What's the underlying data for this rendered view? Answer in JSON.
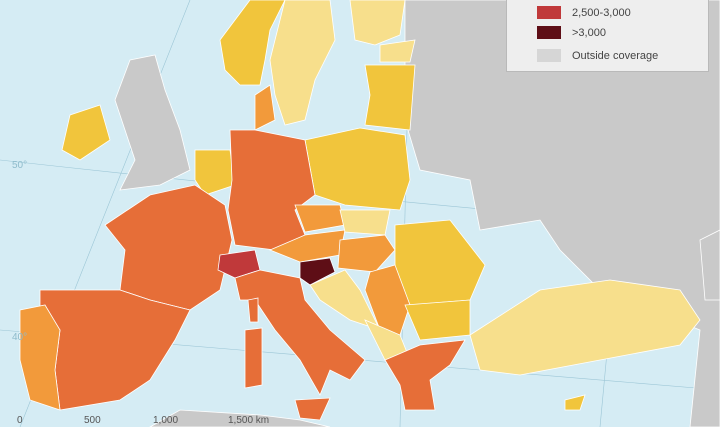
{
  "legend": {
    "items": [
      {
        "label": "2,500-3,000",
        "color": "#c0393a"
      },
      {
        "label": ">3,000",
        "color": "#5e0e16"
      },
      {
        "label": "Outside coverage",
        "color": "#cdcdcd"
      }
    ]
  },
  "scale_bar": {
    "labels": [
      "0",
      "500",
      "1,000",
      "1,500 km"
    ]
  },
  "graticule": {
    "labels": [
      "50°",
      "40°"
    ]
  },
  "colors": {
    "sea": "#d5ecf4",
    "outside": "#c9c9c9",
    "class_pale": "#f7df8c",
    "class_yellow": "#f1c53c",
    "class_light_orange": "#f29a3b",
    "class_orange": "#e66e38",
    "class_red": "#c0393a",
    "class_dark": "#5e0e16"
  }
}
